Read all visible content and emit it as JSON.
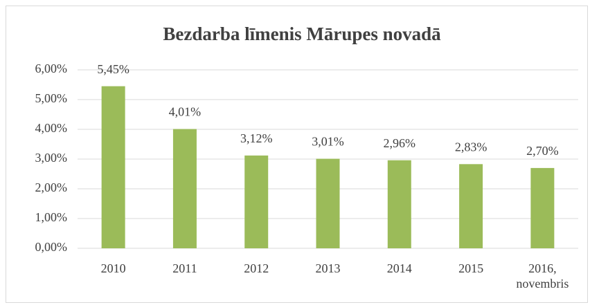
{
  "chart_data": {
    "type": "bar",
    "title": "Bezdarba līmenis Mārupes novadā",
    "categories": [
      "2010",
      "2011",
      "2012",
      "2013",
      "2014",
      "2015",
      "2016, novembris"
    ],
    "values": [
      5.45,
      4.01,
      3.12,
      3.01,
      2.96,
      2.83,
      2.7
    ],
    "value_labels": [
      "5,45%",
      "4,01%",
      "3,12%",
      "3,01%",
      "2,96%",
      "2,83%",
      "2,70%"
    ],
    "color": "#9bbb59",
    "ylim": [
      0,
      6
    ],
    "yticks": [
      {
        "value": 0,
        "label": "0,00%"
      },
      {
        "value": 1,
        "label": "1,00%"
      },
      {
        "value": 2,
        "label": "2,00%"
      },
      {
        "value": 3,
        "label": "3,00%"
      },
      {
        "value": 4,
        "label": "4,00%"
      },
      {
        "value": 5,
        "label": "5,00%"
      },
      {
        "value": 6,
        "label": "6,00%"
      }
    ],
    "grid": true
  }
}
